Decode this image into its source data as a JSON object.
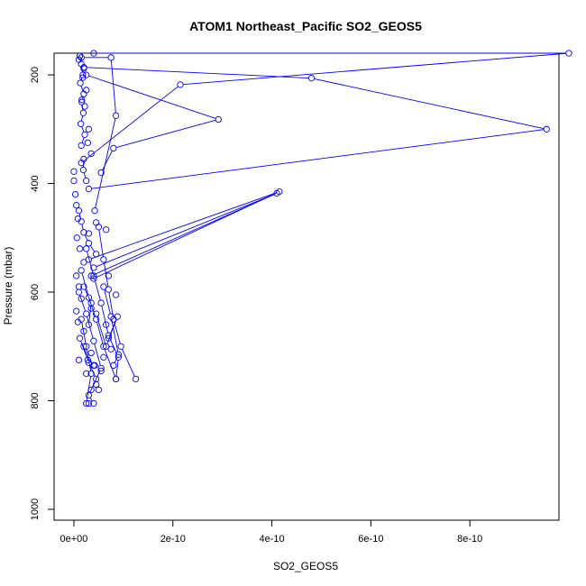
{
  "chart_data": {
    "type": "line",
    "title": "ATOM1 Northeast_Pacific SO2_GEOS5",
    "xlabel": "SO2_GEOS5",
    "ylabel": "Pressure (mbar)",
    "xlim": [
      -4e-11,
      9.8e-10
    ],
    "ylim": [
      1020,
      160
    ],
    "y_reversed": true,
    "x_ticks": [
      {
        "value": 0,
        "label": "0e+00"
      },
      {
        "value": 2e-10,
        "label": "2e-10"
      },
      {
        "value": 4e-10,
        "label": "4e-10"
      },
      {
        "value": 6e-10,
        "label": "6e-10"
      },
      {
        "value": 8e-10,
        "label": "8e-10"
      }
    ],
    "y_ticks": [
      {
        "value": 200,
        "label": "200"
      },
      {
        "value": 400,
        "label": "400"
      },
      {
        "value": 600,
        "label": "600"
      },
      {
        "value": 800,
        "label": "800"
      },
      {
        "value": 1000,
        "label": "1000"
      }
    ],
    "grid": false,
    "series_color": "#0000ff",
    "series": [
      {
        "x": [
          1.2e-11,
          1.5e-11,
          1.8e-11,
          1.3e-11,
          2e-11,
          1.6e-11,
          1.9e-11,
          1.4e-11,
          2.2e-11,
          1.5e-11
        ],
        "y": [
          165,
          180,
          200,
          215,
          235,
          250,
          270,
          290,
          310,
          330
        ]
      },
      {
        "x": [
          1.5e-11,
          7.5e-11,
          8.5e-11,
          4.2e-11
        ],
        "y": [
          168,
          168,
          275,
          450
        ]
      },
      {
        "x": [
          4e-11,
          1e-09,
          2.15e-10,
          1.5e-11
        ],
        "y": [
          160,
          160,
          218,
          362
        ]
      },
      {
        "x": [
          2e-11,
          4.8e-10,
          9.55e-10,
          3e-11
        ],
        "y": [
          186,
          206,
          300,
          410
        ]
      },
      {
        "x": [
          2.5e-11,
          2.92e-10,
          8e-11,
          5.5e-11
        ],
        "y": [
          200,
          282,
          335,
          380
        ]
      },
      {
        "x": [
          2e-11,
          1.9e-11,
          2.5e-11
        ],
        "y": [
          355,
          375,
          395
        ]
      },
      {
        "x": [
          3e-11,
          4.15e-10,
          4e-11
        ],
        "y": [
          540,
          415,
          575
        ]
      },
      {
        "x": [
          4e-11,
          4.1e-10,
          3.5e-11
        ],
        "y": [
          555,
          418,
          570
        ]
      },
      {
        "x": [
          1e-11,
          1.5e-11,
          2e-11,
          3e-11,
          4.5e-11
        ],
        "y": [
          450,
          470,
          490,
          510,
          530
        ]
      },
      {
        "x": [
          5e-11,
          6e-11,
          7e-11,
          8e-11,
          9.5e-11,
          1.25e-10
        ],
        "y": [
          480,
          540,
          595,
          650,
          700,
          760
        ]
      },
      {
        "x": [
          2.5e-11,
          4e-11,
          5.5e-11,
          7e-11,
          9e-11,
          8.5e-11
        ],
        "y": [
          520,
          570,
          620,
          680,
          720,
          760
        ]
      },
      {
        "x": [
          1.5e-11,
          3e-11,
          4.5e-11,
          6e-11,
          8.5e-11
        ],
        "y": [
          560,
          610,
          650,
          700,
          760
        ]
      },
      {
        "x": [
          1e-11,
          2.5e-11,
          4e-11,
          5.5e-11,
          3.5e-11
        ],
        "y": [
          600,
          640,
          690,
          740,
          780
        ]
      },
      {
        "x": [
          2e-11,
          3e-11,
          4.5e-11,
          3e-11,
          4e-11
        ],
        "y": [
          700,
          730,
          760,
          790,
          805
        ]
      },
      {
        "x": [
          1.5e-11,
          2.5e-11,
          3.5e-11,
          2.5e-11
        ],
        "y": [
          650,
          700,
          750,
          805
        ]
      },
      {
        "x": [
          6e-11,
          7.5e-11,
          9e-11,
          8e-11
        ],
        "y": [
          590,
          645,
          715,
          735
        ]
      },
      {
        "x": [
          4.5e-11,
          6.5e-11,
          8.8e-11,
          7e-11
        ],
        "y": [
          640,
          700,
          645,
          685
        ]
      },
      {
        "x": [
          2e-11,
          3.5e-11,
          3e-11
        ],
        "y": [
          590,
          620,
          660
        ]
      },
      {
        "x": [
          1.2e-11,
          2.8e-11,
          4.2e-11
        ],
        "y": [
          685,
          725,
          735
        ]
      }
    ],
    "scatter_points": [
      {
        "x": 1e-11,
        "y": 172
      },
      {
        "x": 2e-11,
        "y": 188
      },
      {
        "x": 1.8e-11,
        "y": 205
      },
      {
        "x": 2.5e-11,
        "y": 228
      },
      {
        "x": 1.6e-11,
        "y": 246
      },
      {
        "x": 2.2e-11,
        "y": 258
      },
      {
        "x": 3e-11,
        "y": 300
      },
      {
        "x": 2.8e-11,
        "y": 325
      },
      {
        "x": 3.5e-11,
        "y": 345
      },
      {
        "x": 0,
        "y": 395
      },
      {
        "x": 0,
        "y": 378
      },
      {
        "x": 3e-12,
        "y": 420
      },
      {
        "x": 5e-12,
        "y": 440
      },
      {
        "x": 8e-12,
        "y": 465
      },
      {
        "x": 6e-12,
        "y": 500
      },
      {
        "x": 1.2e-11,
        "y": 520
      },
      {
        "x": 2e-11,
        "y": 545
      },
      {
        "x": 5e-12,
        "y": 570
      },
      {
        "x": 1e-11,
        "y": 590
      },
      {
        "x": 3.5e-11,
        "y": 630
      },
      {
        "x": 6.5e-11,
        "y": 660
      },
      {
        "x": 7.5e-11,
        "y": 705
      },
      {
        "x": 1e-11,
        "y": 725
      },
      {
        "x": 2.5e-11,
        "y": 750
      },
      {
        "x": 5e-11,
        "y": 780
      },
      {
        "x": 3e-11,
        "y": 805
      },
      {
        "x": 4.5e-11,
        "y": 770
      },
      {
        "x": 5.5e-11,
        "y": 745
      },
      {
        "x": 8.5e-11,
        "y": 605
      },
      {
        "x": 7e-11,
        "y": 570
      },
      {
        "x": 6.5e-11,
        "y": 485
      },
      {
        "x": 4.5e-11,
        "y": 472
      },
      {
        "x": 3e-11,
        "y": 492
      },
      {
        "x": 1.5e-11,
        "y": 612
      },
      {
        "x": 2e-11,
        "y": 672
      },
      {
        "x": 3.5e-11,
        "y": 712
      },
      {
        "x": 4e-11,
        "y": 735
      },
      {
        "x": 6e-11,
        "y": 720
      },
      {
        "x": 5e-12,
        "y": 635
      },
      {
        "x": 8e-12,
        "y": 655
      }
    ]
  }
}
